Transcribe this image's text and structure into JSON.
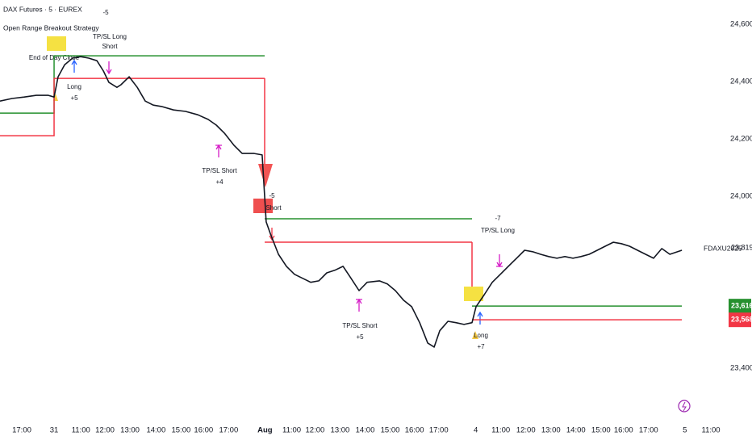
{
  "chart_data": {
    "type": "line",
    "title": "DAX Futures · 5 · EUREX",
    "subtitle": "Open Range Breakout Strategy",
    "symbol": "FDAXU2025",
    "xlim": [
      0,
      29
    ],
    "ylim": [
      23233,
      24685
    ],
    "yticks": [
      {
        "value": 24600,
        "label": "24,600"
      },
      {
        "value": 24400,
        "label": "24,400"
      },
      {
        "value": 24200,
        "label": "24,200"
      },
      {
        "value": 24000,
        "label": "24,000"
      },
      {
        "value": 23400,
        "label": "23,400"
      }
    ],
    "xticks": [
      {
        "value": 0.87,
        "label": "17:00"
      },
      {
        "value": 2.16,
        "label": "31"
      },
      {
        "value": 3.23,
        "label": "11:00"
      },
      {
        "value": 4.19,
        "label": "12:00"
      },
      {
        "value": 5.19,
        "label": "13:00"
      },
      {
        "value": 6.23,
        "label": "14:00"
      },
      {
        "value": 7.23,
        "label": "15:00"
      },
      {
        "value": 8.13,
        "label": "16:00"
      },
      {
        "value": 9.13,
        "label": "17:00"
      },
      {
        "value": 10.58,
        "label": "Aug"
      },
      {
        "value": 11.65,
        "label": "11:00"
      },
      {
        "value": 12.58,
        "label": "12:00"
      },
      {
        "value": 13.58,
        "label": "13:00"
      },
      {
        "value": 14.58,
        "label": "14:00"
      },
      {
        "value": 15.58,
        "label": "15:00"
      },
      {
        "value": 16.55,
        "label": "16:00"
      },
      {
        "value": 17.52,
        "label": "17:00"
      },
      {
        "value": 19.0,
        "label": "4"
      },
      {
        "value": 20.0,
        "label": "11:00"
      },
      {
        "value": 21.0,
        "label": "12:00"
      },
      {
        "value": 22.0,
        "label": "13:00"
      },
      {
        "value": 23.0,
        "label": "14:00"
      },
      {
        "value": 24.0,
        "label": "15:00"
      },
      {
        "value": 24.9,
        "label": "16:00"
      },
      {
        "value": 25.9,
        "label": "17:00"
      },
      {
        "value": 27.35,
        "label": "5"
      },
      {
        "value": 28.39,
        "label": "11:00"
      }
    ],
    "x": [
      0,
      0.48,
      0.97,
      1.45,
      1.93,
      2.16,
      2.32,
      2.58,
      2.9,
      3.22,
      3.54,
      3.87,
      4.13,
      4.35,
      4.67,
      4.83,
      5.16,
      5.48,
      5.8,
      6.12,
      6.45,
      6.93,
      7.41,
      7.9,
      8.31,
      8.64,
      8.96,
      9.35,
      9.67,
      10.15,
      10.47,
      10.63,
      10.8,
      11.12,
      11.44,
      11.76,
      12.09,
      12.41,
      12.73,
      13.05,
      13.37,
      13.7,
      14.02,
      14.34,
      14.66,
      15.15,
      15.47,
      15.79,
      16.11,
      16.44,
      16.76,
      17.08,
      17.34,
      17.56,
      17.89,
      18.21,
      18.53,
      18.85,
      19.01,
      19.34,
      19.66,
      19.98,
      20.3,
      20.63,
      20.95,
      21.27,
      21.59,
      21.91,
      22.24,
      22.56,
      22.88,
      23.2,
      23.53,
      23.85,
      24.17,
      24.49,
      24.81,
      25.14,
      25.46,
      25.78,
      26.1,
      26.43,
      26.75,
      27.23
    ],
    "series": [
      {
        "color": "#131722",
        "values": [
          24332,
          24341,
          24346,
          24352,
          24352,
          24346,
          24417,
          24459,
          24482,
          24487,
          24482,
          24473,
          24437,
          24397,
          24380,
          24389,
          24417,
          24380,
          24332,
          24318,
          24313,
          24301,
          24296,
          24284,
          24268,
          24248,
          24220,
          24177,
          24149,
          24149,
          24144,
          23910,
          23868,
          23797,
          23755,
          23727,
          23713,
          23699,
          23704,
          23732,
          23741,
          23755,
          23713,
          23670,
          23699,
          23704,
          23693,
          23670,
          23637,
          23614,
          23558,
          23487,
          23473,
          23530,
          23563,
          23558,
          23552,
          23558,
          23614,
          23656,
          23699,
          23727,
          23755,
          23783,
          23811,
          23806,
          23797,
          23789,
          23783,
          23789,
          23783,
          23789,
          23797,
          23811,
          23825,
          23839,
          23834,
          23825,
          23811,
          23797,
          23783,
          23817,
          23797,
          23811
        ]
      }
    ],
    "range_lines": [
      {
        "color": "#26902f",
        "x": [
          0,
          2.16,
          2.16,
          10.57
        ],
        "values": [
          24290,
          24290,
          24490,
          24490
        ]
      },
      {
        "color": "#f23645",
        "x": [
          0,
          2.16,
          2.16,
          10.57
        ],
        "values": [
          24211,
          24211,
          24411,
          24411
        ]
      },
      {
        "color": "#26902f",
        "x": [
          10.57,
          18.85
        ],
        "values": [
          23921,
          23921
        ]
      },
      {
        "color": "#f23645",
        "x": [
          10.57,
          18.85
        ],
        "values": [
          23839,
          23839
        ]
      },
      {
        "color": "#26902f",
        "x": [
          18.85,
          27.23
        ],
        "values": [
          23616,
          23616
        ]
      },
      {
        "color": "#f23645",
        "x": [
          18.85,
          27.23
        ],
        "values": [
          23568,
          23568
        ]
      }
    ],
    "price_tags": [
      {
        "value": 23819,
        "label": "23,819",
        "color": "none"
      },
      {
        "value": 23616,
        "label": "23,616",
        "color": "#26902f"
      },
      {
        "value": 23568,
        "label": "23,568",
        "color": "#f23645"
      }
    ],
    "annotations": [
      "-5",
      "TP/SL Long",
      "Short",
      "End of Day Close",
      "Long",
      "+5",
      "TP/SL Short",
      "+4",
      "-5",
      "Short",
      "-7",
      "TP/SL Long",
      "TP/SL Short",
      "+5",
      "Long",
      "+7"
    ]
  }
}
